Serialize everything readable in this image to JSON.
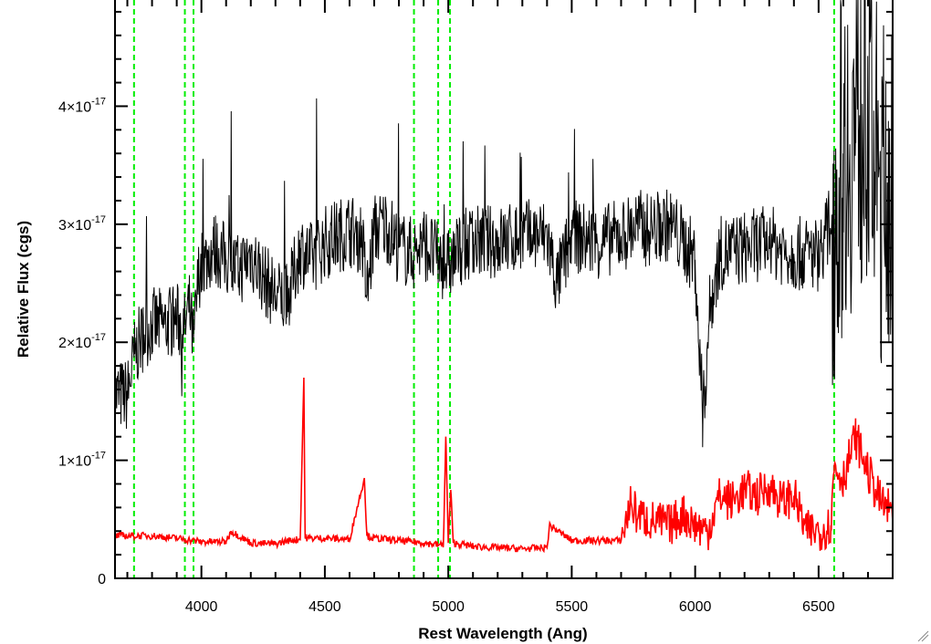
{
  "chart_data": {
    "type": "line",
    "title": "",
    "xlabel": "Rest Wavelength (Ang)",
    "ylabel": "Relative Flux (cgs)",
    "xlim": [
      3650,
      6800
    ],
    "ylim": [
      0,
      4.9e-17
    ],
    "x_ticks": [
      4000,
      4500,
      5000,
      5500,
      6000,
      6500
    ],
    "x_tick_labels": [
      "4000",
      "4500",
      "5000",
      "5500",
      "6000",
      "6500"
    ],
    "y_ticks": [
      {
        "value": 0,
        "mantissa": "0",
        "exp": ""
      },
      {
        "value": 1e-17,
        "mantissa": "1×10",
        "exp": "-17"
      },
      {
        "value": 2e-17,
        "mantissa": "2×10",
        "exp": "-17"
      },
      {
        "value": 3e-17,
        "mantissa": "3×10",
        "exp": "-17"
      },
      {
        "value": 4e-17,
        "mantissa": "4×10",
        "exp": "-17"
      }
    ],
    "x_minor_step": 100,
    "y_minor_step": 2e-18,
    "grid": false,
    "legend": "none",
    "vertical_lines": [
      3727,
      3933,
      3968,
      4861,
      4959,
      5007,
      6563
    ],
    "colors": {
      "spectrum": "#000000",
      "error": "#ff0000",
      "lines": "#00ee00",
      "axes": "#000000"
    },
    "series": [
      {
        "role": "spectrum",
        "color": "#000000",
        "x": [
          3650,
          3700,
          3730,
          3760,
          3800,
          3850,
          3900,
          3930,
          3950,
          3968,
          3990,
          4050,
          4100,
          4150,
          4200,
          4250,
          4300,
          4350,
          4400,
          4420,
          4450,
          4500,
          4550,
          4600,
          4650,
          4670,
          4700,
          4750,
          4800,
          4861,
          4900,
          4959,
          5000,
          5050,
          5100,
          5200,
          5300,
          5400,
          5440,
          5500,
          5600,
          5700,
          5765,
          5800,
          5900,
          6000,
          6030,
          6060,
          6100,
          6200,
          6300,
          6400,
          6500,
          6563,
          6600,
          6650,
          6700,
          6750,
          6800
        ],
        "y": [
          1.55e-17,
          1.55e-17,
          1.9e-17,
          2.05e-17,
          2.15e-17,
          2.15e-17,
          2.2e-17,
          2.1e-17,
          2.3e-17,
          2e-17,
          2.6e-17,
          2.8e-17,
          2.7e-17,
          2.6e-17,
          2.75e-17,
          2.55e-17,
          2.4e-17,
          2.35e-17,
          2.8e-17,
          2.75e-17,
          2.7e-17,
          2.85e-17,
          2.9e-17,
          2.95e-17,
          2.9e-17,
          2.4e-17,
          2.95e-17,
          3e-17,
          2.8e-17,
          2.75e-17,
          2.85e-17,
          2.7e-17,
          2.65e-17,
          2.8e-17,
          2.85e-17,
          2.85e-17,
          2.9e-17,
          2.9e-17,
          2.5e-17,
          2.9e-17,
          2.85e-17,
          2.9e-17,
          3e-17,
          2.95e-17,
          3e-17,
          2.7e-17,
          1.3e-17,
          2.3e-17,
          2.75e-17,
          2.8e-17,
          2.85e-17,
          2.75e-17,
          2.75e-17,
          3.1e-17,
          3.6e-17,
          3.8e-17,
          3.9e-17,
          3.2e-17,
          3.5e-17
        ]
      },
      {
        "role": "error",
        "color": "#ff0000",
        "x": [
          3650,
          3800,
          3900,
          4000,
          4100,
          4120,
          4200,
          4300,
          4350,
          4400,
          4415,
          4420,
          4430,
          4500,
          4600,
          4660,
          4670,
          4700,
          4800,
          4900,
          4980,
          4990,
          5000,
          5010,
          5020,
          5100,
          5200,
          5300,
          5400,
          5410,
          5500,
          5600,
          5700,
          5740,
          5760,
          5800,
          5900,
          5950,
          6000,
          6050,
          6100,
          6150,
          6200,
          6250,
          6300,
          6350,
          6400,
          6450,
          6500,
          6550,
          6563,
          6600,
          6650,
          6700,
          6750,
          6800
        ],
        "y": [
          3.6e-18,
          3.6e-18,
          3.4e-18,
          3.1e-18,
          3.1e-18,
          4e-18,
          3e-18,
          2.9e-18,
          3.2e-18,
          3.3e-18,
          1.7e-17,
          3.5e-18,
          3.4e-18,
          3.4e-18,
          3.3e-18,
          8.5e-18,
          3.6e-18,
          3.4e-18,
          3.2e-18,
          3e-18,
          2.8e-18,
          1.2e-17,
          3.1e-18,
          7.5e-18,
          3e-18,
          2.7e-18,
          2.6e-18,
          2.5e-18,
          2.6e-18,
          4.5e-18,
          3.2e-18,
          3.2e-18,
          3.2e-18,
          6.5e-18,
          5.5e-18,
          5e-18,
          4.5e-18,
          5.5e-18,
          4.5e-18,
          4e-18,
          7e-18,
          6.5e-18,
          7.5e-18,
          7e-18,
          7.8e-18,
          6.5e-18,
          7e-18,
          4e-18,
          4e-18,
          4.5e-18,
          9.5e-18,
          8.5e-18,
          1.2e-17,
          9e-18,
          6.5e-18,
          5.5e-18
        ]
      }
    ]
  }
}
